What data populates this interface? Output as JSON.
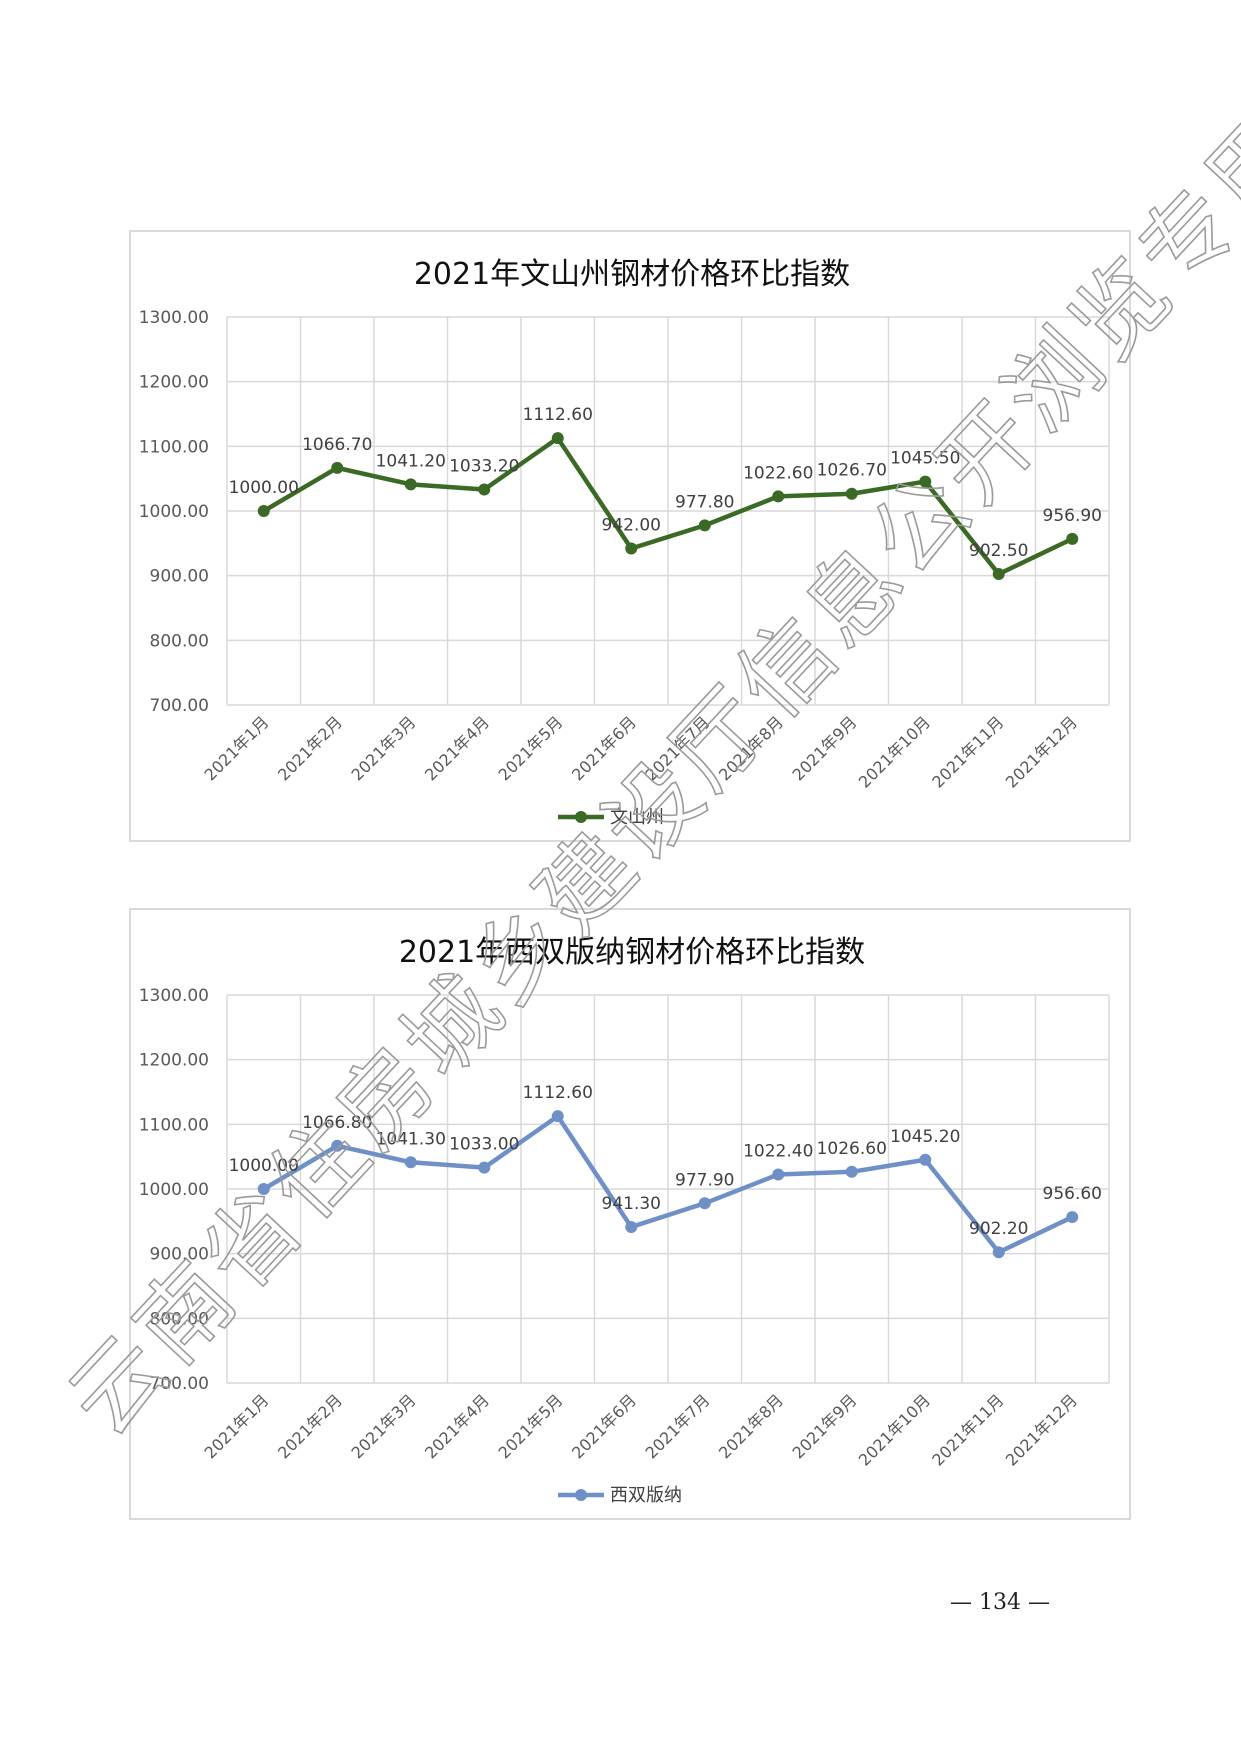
{
  "page": {
    "number": "— 134 —",
    "watermark": "云南省住房城乡建设厅信息公开浏览专用"
  },
  "charts": [
    {
      "title": "2021年文山州钢材价格环比指数",
      "type": "line",
      "color": "#3a6a25",
      "categories": [
        "2021年1月",
        "2021年2月",
        "2021年3月",
        "2021年4月",
        "2021年5月",
        "2021年6月",
        "2021年7月",
        "2021年8月",
        "2021年9月",
        "2021年10月",
        "2021年11月",
        "2021年12月"
      ],
      "series": [
        {
          "name": "文山州",
          "values": [
            1000.0,
            1066.7,
            1041.2,
            1033.2,
            1112.6,
            942.0,
            977.8,
            1022.6,
            1026.7,
            1045.5,
            902.5,
            956.9
          ]
        }
      ],
      "value_labels": [
        "1000.00",
        "1066.70",
        "1041.20",
        "1033.20",
        "1112.60",
        "942.00",
        "977.80",
        "1022.60",
        "1026.70",
        "1045.50",
        "902.50",
        "956.90"
      ],
      "ylim": [
        700,
        1300
      ],
      "ytick_labels": [
        "700.00",
        "800.00",
        "900.00",
        "1000.00",
        "1100.00",
        "1200.00",
        "1300.00"
      ],
      "grid": true,
      "legend": "bottom"
    },
    {
      "title": "2021年西双版纳钢材价格环比指数",
      "type": "line",
      "color": "#6f8fc7",
      "categories": [
        "2021年1月",
        "2021年2月",
        "2021年3月",
        "2021年4月",
        "2021年5月",
        "2021年6月",
        "2021年7月",
        "2021年8月",
        "2021年9月",
        "2021年10月",
        "2021年11月",
        "2021年12月"
      ],
      "series": [
        {
          "name": "西双版纳",
          "values": [
            1000.0,
            1066.8,
            1041.3,
            1033.0,
            1112.6,
            941.3,
            977.9,
            1022.4,
            1026.6,
            1045.2,
            902.2,
            956.6
          ]
        }
      ],
      "value_labels": [
        "1000.00",
        "1066.80",
        "1041.30",
        "1033.00",
        "1112.60",
        "941.30",
        "977.90",
        "1022.40",
        "1026.60",
        "1045.20",
        "902.20",
        "956.60"
      ],
      "ylim": [
        700,
        1300
      ],
      "ytick_labels": [
        "700.00",
        "800.00",
        "900.00",
        "1000.00",
        "1100.00",
        "1200.00",
        "1300.00"
      ],
      "grid": true,
      "legend": "bottom"
    }
  ]
}
